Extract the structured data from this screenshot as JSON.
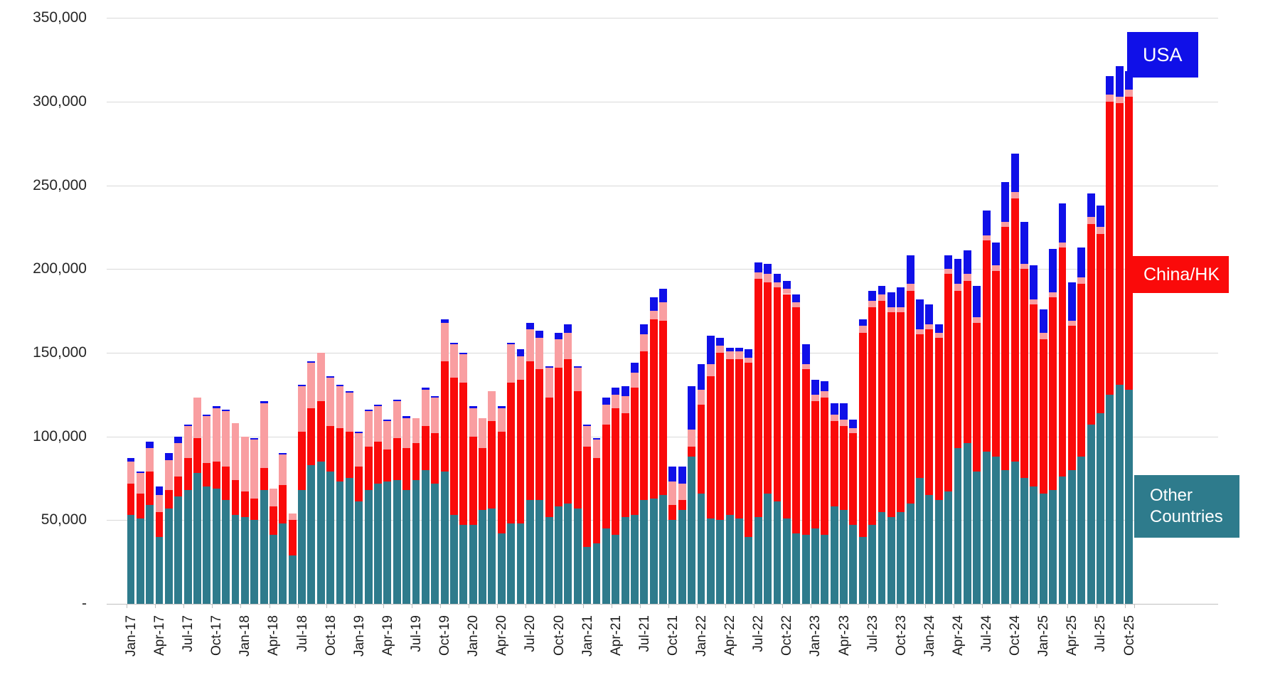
{
  "chart_data": {
    "type": "bar",
    "stacked": true,
    "title": "",
    "xlabel": "",
    "ylabel": "",
    "ylim": [
      0,
      350000
    ],
    "ytick_interval": 50000,
    "ytick_labels": [
      "-",
      "50,000",
      "100,000",
      "150,000",
      "200,000",
      "250,000",
      "300,000",
      "350,000"
    ],
    "xtick_every": 3,
    "grid": "horizontal",
    "legend_position": "right",
    "categories": [
      "Jan-17",
      "Feb-17",
      "Mar-17",
      "Apr-17",
      "May-17",
      "Jun-17",
      "Jul-17",
      "Aug-17",
      "Sep-17",
      "Oct-17",
      "Nov-17",
      "Dec-17",
      "Jan-18",
      "Feb-18",
      "Mar-18",
      "Apr-18",
      "May-18",
      "Jun-18",
      "Jul-18",
      "Aug-18",
      "Sep-18",
      "Oct-18",
      "Nov-18",
      "Dec-18",
      "Jan-19",
      "Feb-19",
      "Mar-19",
      "Apr-19",
      "May-19",
      "Jun-19",
      "Jul-19",
      "Aug-19",
      "Sep-19",
      "Oct-19",
      "Nov-19",
      "Dec-19",
      "Jan-20",
      "Feb-20",
      "Mar-20",
      "Apr-20",
      "May-20",
      "Jun-20",
      "Jul-20",
      "Aug-20",
      "Sep-20",
      "Oct-20",
      "Nov-20",
      "Dec-20",
      "Jan-21",
      "Feb-21",
      "Mar-21",
      "Apr-21",
      "May-21",
      "Jun-21",
      "Jul-21",
      "Aug-21",
      "Sep-21",
      "Oct-21",
      "Nov-21",
      "Dec-21",
      "Jan-22",
      "Feb-22",
      "Mar-22",
      "Apr-22",
      "May-22",
      "Jun-22",
      "Jul-22",
      "Aug-22",
      "Sep-22",
      "Oct-22",
      "Nov-22",
      "Dec-22",
      "Jan-23",
      "Feb-23",
      "Mar-23",
      "Apr-23",
      "May-23",
      "Jun-23",
      "Jul-23",
      "Aug-23",
      "Sep-23",
      "Oct-23",
      "Nov-23",
      "Dec-23",
      "Jan-24",
      "Feb-24",
      "Mar-24",
      "Apr-24",
      "May-24",
      "Jun-24",
      "Jul-24",
      "Aug-24",
      "Sep-24",
      "Oct-24",
      "Nov-24",
      "Dec-24",
      "Jan-25",
      "Feb-25",
      "Mar-25",
      "Apr-25",
      "May-25",
      "Jun-25",
      "Jul-25",
      "Aug-25",
      "Sep-25",
      "Oct-25"
    ],
    "series": [
      {
        "name": "Other Countries",
        "color": "#2E7B8C",
        "values": [
          53000,
          51000,
          59000,
          40000,
          57000,
          64000,
          68000,
          78000,
          70000,
          69000,
          62000,
          53000,
          52000,
          50000,
          68000,
          41000,
          48000,
          29000,
          68000,
          83000,
          85000,
          79000,
          73000,
          75000,
          61000,
          68000,
          72000,
          73000,
          74000,
          68000,
          74000,
          80000,
          72000,
          79000,
          53000,
          47000,
          47000,
          56000,
          57000,
          42000,
          48000,
          48000,
          62000,
          62000,
          52000,
          58000,
          60000,
          57000,
          34000,
          36000,
          45000,
          41000,
          52000,
          53000,
          62000,
          63000,
          65000,
          50000,
          56000,
          88000,
          66000,
          51000,
          50000,
          53000,
          51000,
          40000,
          52000,
          66000,
          61000,
          51000,
          42000,
          41000,
          45000,
          41000,
          58000,
          56000,
          47000,
          40000,
          47000,
          55000,
          52000,
          55000,
          60000,
          75000,
          65000,
          62000,
          67000,
          93000,
          96000,
          79000,
          91000,
          88000,
          80000,
          85000,
          75000,
          70000,
          66000,
          68000,
          76000,
          80000,
          88000,
          107000,
          114000,
          125000,
          131000,
          128000
        ]
      },
      {
        "name": "China/HK",
        "color": "#FA0A0A",
        "values": [
          19000,
          15000,
          20000,
          15000,
          11000,
          12000,
          19000,
          21000,
          14000,
          16000,
          20000,
          21000,
          15000,
          13000,
          13000,
          17000,
          23000,
          21000,
          35000,
          34000,
          36000,
          27000,
          32000,
          28000,
          21000,
          26000,
          25000,
          19000,
          25000,
          25000,
          22000,
          26000,
          30000,
          66000,
          82000,
          85000,
          53000,
          37000,
          52000,
          61000,
          84000,
          86000,
          83000,
          78000,
          71000,
          83000,
          86000,
          70000,
          60000,
          51000,
          62000,
          76000,
          62000,
          76000,
          89000,
          107000,
          104000,
          9000,
          6000,
          6000,
          53000,
          85000,
          100000,
          93000,
          95000,
          104000,
          142000,
          126000,
          128000,
          134000,
          135000,
          99000,
          76000,
          82000,
          51000,
          50000,
          55000,
          122000,
          130000,
          126000,
          122000,
          119000,
          127000,
          86000,
          99000,
          97000,
          130000,
          94000,
          97000,
          89000,
          126000,
          111000,
          145000,
          157000,
          125000,
          109000,
          92000,
          115000,
          137000,
          86000,
          103000,
          120000,
          107000,
          175000,
          168000,
          175000
        ]
      },
      {
        "name": "China/HK (light)",
        "color": "#F99EA1",
        "values": [
          13000,
          12000,
          14000,
          10000,
          18000,
          20000,
          19000,
          24000,
          28000,
          32000,
          33000,
          34000,
          33000,
          35000,
          39000,
          11000,
          18000,
          4000,
          27000,
          27000,
          29000,
          29000,
          25000,
          23000,
          20000,
          21000,
          21000,
          17000,
          22000,
          18000,
          15000,
          22000,
          21000,
          23000,
          20000,
          17000,
          17000,
          18000,
          18000,
          14000,
          23000,
          14000,
          19000,
          19000,
          18000,
          17000,
          16000,
          14000,
          12000,
          11000,
          12000,
          8000,
          10000,
          9000,
          10000,
          5000,
          11000,
          14000,
          10000,
          10000,
          9000,
          7000,
          4000,
          5000,
          5000,
          3000,
          4000,
          5000,
          3000,
          3000,
          3000,
          3000,
          4000,
          4000,
          4000,
          4000,
          3000,
          4000,
          4000,
          4000,
          3000,
          3000,
          4000,
          3000,
          3000,
          3000,
          3000,
          4000,
          4000,
          3000,
          3000,
          3000,
          3000,
          4000,
          3000,
          3000,
          4000,
          3000,
          3000,
          3000,
          4000,
          4000,
          4000,
          4000,
          4000,
          4000
        ]
      },
      {
        "name": "USA",
        "color": "#1010E8",
        "values": [
          2000,
          1000,
          4000,
          5000,
          4000,
          4000,
          1000,
          0,
          1000,
          1000,
          1000,
          0,
          0,
          1000,
          1000,
          0,
          1000,
          0,
          1000,
          1000,
          0,
          1000,
          1000,
          1000,
          1000,
          1000,
          1000,
          1000,
          1000,
          1000,
          0,
          1000,
          1000,
          2000,
          1000,
          1000,
          1000,
          0,
          0,
          1000,
          1000,
          4000,
          4000,
          4000,
          1000,
          4000,
          5000,
          1000,
          1000,
          1000,
          4000,
          4000,
          6000,
          6000,
          6000,
          8000,
          8000,
          9000,
          10000,
          26000,
          15000,
          17000,
          5000,
          2000,
          2000,
          5000,
          6000,
          6000,
          5000,
          5000,
          5000,
          12000,
          9000,
          6000,
          7000,
          10000,
          5000,
          4000,
          6000,
          5000,
          9000,
          12000,
          17000,
          18000,
          12000,
          5000,
          8000,
          15000,
          14000,
          19000,
          15000,
          14000,
          24000,
          23000,
          25000,
          20000,
          14000,
          26000,
          23000,
          23000,
          18000,
          14000,
          13000,
          11000,
          18000,
          11000
        ]
      }
    ]
  },
  "legend": {
    "usa_label": "USA",
    "china_label": "China/HK",
    "other_label_line1": "Other",
    "other_label_line2": "Countries"
  },
  "colors": {
    "other": "#2E7B8C",
    "china_dark": "#FA0A0A",
    "china_light": "#F99EA1",
    "usa": "#1010E8",
    "gridline": "#D9D9D9",
    "axis": "#BFBFBF"
  }
}
